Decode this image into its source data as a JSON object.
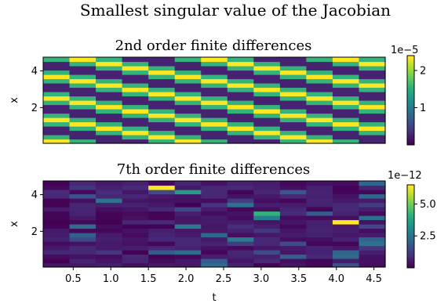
{
  "figure": {
    "suptitle": "Smallest singular value of the Jacobian"
  },
  "chart_data": [
    {
      "type": "heatmap",
      "title": "2nd order finite differences",
      "xlabel": "",
      "ylabel": "x",
      "xlim": [
        0.1,
        4.65
      ],
      "ylim": [
        0.05,
        4.75
      ],
      "x_ticks": [],
      "y_ticks": [
        2,
        4
      ],
      "y_tick_labels": [
        "2",
        "4"
      ],
      "n_cols": 13,
      "n_rows": 20,
      "pattern": "diagonal stripes: bright yellow / green / purple bands repeating along x, shifting by one row per column",
      "colorbar": {
        "min": 0,
        "max": 2.4,
        "ticks": [
          1,
          2
        ],
        "tick_labels": [
          "1",
          "2"
        ],
        "multiplier": "1e−5"
      },
      "colormap": "viridis"
    },
    {
      "type": "heatmap",
      "title": "7th order finite differences",
      "xlabel": "t",
      "ylabel": "x",
      "xlim": [
        0.1,
        4.65
      ],
      "ylim": [
        0.05,
        4.75
      ],
      "x_ticks": [
        0.5,
        1.0,
        1.5,
        2.0,
        2.5,
        3.0,
        3.5,
        4.0,
        4.5
      ],
      "x_tick_labels": [
        "0.5",
        "1.0",
        "1.5",
        "2.0",
        "2.5",
        "3.0",
        "3.5",
        "4.0",
        "4.5"
      ],
      "y_ticks": [
        2,
        4
      ],
      "y_tick_labels": [
        "2",
        "4"
      ],
      "n_cols": 13,
      "n_rows": 20,
      "pattern": "mostly dark purple with scattered teal/green cells; bright yellow cells near t≈2.2,x≈4.3 and t≈4.0,x≈2.5",
      "colorbar": {
        "min": 0,
        "max": 6.5,
        "ticks": [
          2.5,
          5.0
        ],
        "tick_labels": [
          "2.5",
          "5.0"
        ],
        "multiplier": "1e−12"
      },
      "colormap": "viridis"
    }
  ]
}
